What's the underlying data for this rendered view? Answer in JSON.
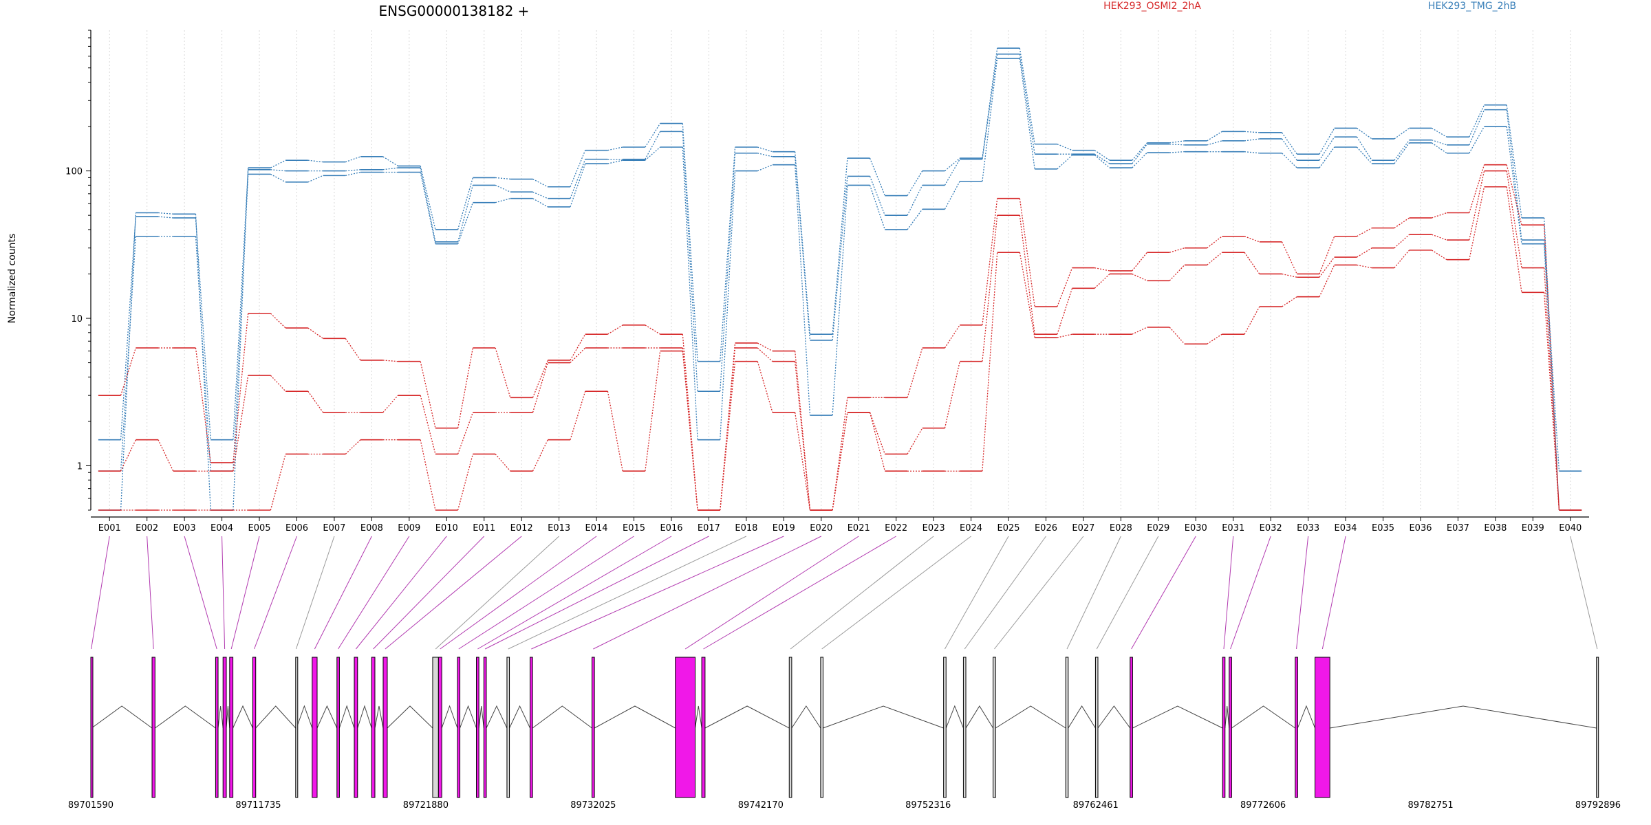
{
  "chart_data": {
    "type": "line",
    "title": "ENSG00000138182 +",
    "xlabel": "",
    "ylabel": "Normalized counts",
    "y_scale": "log",
    "ylim": [
      0.5,
      900
    ],
    "y_ticks": [
      1,
      10,
      100
    ],
    "y_tick_labels": [
      "1",
      "10",
      "100"
    ],
    "grid": "vertical dotted lines at each exon",
    "legend": "top, above plot",
    "legend_entries": [
      {
        "label": "HEK293_OSMI2_2hA",
        "color": "#d62728"
      },
      {
        "label": "HEK293_TMG_2hB",
        "color": "#377eb8"
      }
    ],
    "categories": [
      "E001",
      "E002",
      "E003",
      "E004",
      "E005",
      "E006",
      "E007",
      "E008",
      "E009",
      "E010",
      "E011",
      "E012",
      "E013",
      "E014",
      "E015",
      "E016",
      "E017",
      "E018",
      "E019",
      "E020",
      "E021",
      "E022",
      "E023",
      "E024",
      "E025",
      "E026",
      "E027",
      "E028",
      "E029",
      "E030",
      "E031",
      "E032",
      "E033",
      "E034",
      "E035",
      "E036",
      "E037",
      "E038",
      "E039",
      "E040"
    ],
    "series": [
      {
        "group": "HEK293_TMG_2hB",
        "color": "#377eb8",
        "values": [
          0.5,
          52,
          51,
          0.5,
          105,
          118,
          115,
          125,
          108,
          40,
          90,
          88,
          78,
          138,
          145,
          210,
          5.1,
          145,
          135,
          7.8,
          122,
          68,
          100,
          122,
          680,
          152,
          138,
          118,
          155,
          160,
          185,
          182,
          130,
          195,
          165,
          195,
          170,
          280,
          48,
          0.5
        ]
      },
      {
        "group": "HEK293_TMG_2hB",
        "color": "#377eb8",
        "values": [
          1.5,
          49,
          48,
          1.5,
          102,
          100,
          100,
          102,
          105,
          33,
          80,
          72,
          65,
          120,
          120,
          185,
          3.2,
          132,
          125,
          7.1,
          92,
          50,
          80,
          120,
          620,
          130,
          130,
          112,
          152,
          150,
          160,
          165,
          118,
          170,
          118,
          162,
          150,
          260,
          34,
          0.92
        ]
      },
      {
        "group": "HEK293_TMG_2hB",
        "color": "#377eb8",
        "values": [
          0.92,
          36,
          36,
          0.92,
          95,
          84,
          93,
          98,
          98,
          32,
          61,
          65,
          57,
          112,
          118,
          145,
          1.5,
          100,
          110,
          2.2,
          80,
          40,
          55,
          85,
          580,
          103,
          128,
          105,
          133,
          135,
          135,
          132,
          105,
          145,
          112,
          155,
          132,
          200,
          32,
          0.5
        ]
      },
      {
        "group": "HEK293_OSMI2_2hA",
        "color": "#d62728",
        "values": [
          3.0,
          6.3,
          6.3,
          1.05,
          10.8,
          8.6,
          7.3,
          5.2,
          5.1,
          1.8,
          6.3,
          2.9,
          5.2,
          7.8,
          9.0,
          7.8,
          0.5,
          6.8,
          6.0,
          0.5,
          2.9,
          2.9,
          6.3,
          9.0,
          65,
          12,
          22,
          21,
          28,
          30,
          36,
          33,
          20,
          36,
          41,
          48,
          52,
          110,
          43,
          0.5
        ]
      },
      {
        "group": "HEK293_OSMI2_2hA",
        "color": "#d62728",
        "values": [
          0.92,
          1.5,
          0.92,
          0.92,
          4.1,
          3.2,
          2.3,
          2.3,
          3.0,
          1.2,
          2.3,
          2.3,
          5.0,
          6.3,
          6.3,
          6.3,
          0.5,
          6.3,
          5.1,
          0.5,
          2.3,
          1.2,
          1.8,
          5.1,
          50,
          7.8,
          16,
          20,
          18,
          23,
          28,
          20,
          19,
          26,
          30,
          37,
          34,
          100,
          22,
          0.5
        ]
      },
      {
        "group": "HEK293_OSMI2_2hA",
        "color": "#d62728",
        "values": [
          0.5,
          0.5,
          0.5,
          0.5,
          0.5,
          1.2,
          1.2,
          1.5,
          1.5,
          0.5,
          1.2,
          0.92,
          1.5,
          3.2,
          0.92,
          6.0,
          0.5,
          5.1,
          2.3,
          0.5,
          2.3,
          0.92,
          0.92,
          0.92,
          28,
          7.4,
          7.8,
          7.8,
          8.7,
          6.7,
          7.8,
          12,
          14,
          23,
          22,
          29,
          25,
          78,
          15,
          0.5
        ]
      }
    ],
    "gene_model": {
      "coordinate_labels": [
        "89701590",
        "89711735",
        "89721880",
        "89732025",
        "89742170",
        "89752316",
        "89762461",
        "89772606",
        "89782751",
        "89792896"
      ],
      "coordinate_start": 89701590,
      "coordinate_end": 89792896,
      "legend_colors": {
        "significant": "#f018e8",
        "not_significant": "#d8d8d8"
      },
      "exons": [
        {
          "exon": "E001",
          "start": 89701590,
          "end": 89701640,
          "significant": true
        },
        {
          "exon": "E002",
          "start": 89705300,
          "end": 89705480,
          "significant": true
        },
        {
          "exon": "E003",
          "start": 89709150,
          "end": 89709300,
          "significant": true
        },
        {
          "exon": "E004",
          "start": 89709600,
          "end": 89709800,
          "significant": true
        },
        {
          "exon": "E005",
          "start": 89710000,
          "end": 89710200,
          "significant": true
        },
        {
          "exon": "E006",
          "start": 89711400,
          "end": 89711580,
          "significant": true
        },
        {
          "exon": "E007",
          "start": 89714000,
          "end": 89714050,
          "significant": false
        },
        {
          "exon": "E008",
          "start": 89715000,
          "end": 89715300,
          "significant": true
        },
        {
          "exon": "E009",
          "start": 89716500,
          "end": 89716650,
          "significant": true
        },
        {
          "exon": "E010",
          "start": 89717550,
          "end": 89717750,
          "significant": true
        },
        {
          "exon": "E011",
          "start": 89718600,
          "end": 89718800,
          "significant": true
        },
        {
          "exon": "E012",
          "start": 89719300,
          "end": 89719550,
          "significant": true
        },
        {
          "exon": "E013",
          "start": 89722300,
          "end": 89722650,
          "significant": false
        },
        {
          "exon": "E014",
          "start": 89722650,
          "end": 89722850,
          "significant": true
        },
        {
          "exon": "E015",
          "start": 89723800,
          "end": 89723950,
          "significant": true
        },
        {
          "exon": "E016",
          "start": 89724950,
          "end": 89725100,
          "significant": true
        },
        {
          "exon": "E017",
          "start": 89725400,
          "end": 89725550,
          "significant": true
        },
        {
          "exon": "E018",
          "start": 89726800,
          "end": 89726950,
          "significant": false
        },
        {
          "exon": "E019",
          "start": 89728200,
          "end": 89728350,
          "significant": true
        },
        {
          "exon": "E020",
          "start": 89731950,
          "end": 89732100,
          "significant": true
        },
        {
          "exon": "E021",
          "start": 89737000,
          "end": 89738200,
          "significant": true
        },
        {
          "exon": "E022",
          "start": 89738600,
          "end": 89738800,
          "significant": true
        },
        {
          "exon": "E023",
          "start": 89743900,
          "end": 89744050,
          "significant": false
        },
        {
          "exon": "E024",
          "start": 89745800,
          "end": 89745950,
          "significant": false
        },
        {
          "exon": "E025",
          "start": 89753250,
          "end": 89753400,
          "significant": false
        },
        {
          "exon": "E026",
          "start": 89754450,
          "end": 89754600,
          "significant": false
        },
        {
          "exon": "E027",
          "start": 89756250,
          "end": 89756400,
          "significant": false
        },
        {
          "exon": "E028",
          "start": 89760650,
          "end": 89760800,
          "significant": false
        },
        {
          "exon": "E029",
          "start": 89762450,
          "end": 89762600,
          "significant": false
        },
        {
          "exon": "E030",
          "start": 89764550,
          "end": 89764700,
          "significant": true
        },
        {
          "exon": "E031",
          "start": 89770150,
          "end": 89770300,
          "significant": true
        },
        {
          "exon": "E032",
          "start": 89770550,
          "end": 89770700,
          "significant": true
        },
        {
          "exon": "E033",
          "start": 89774550,
          "end": 89774700,
          "significant": true
        },
        {
          "exon": "E034",
          "start": 89775750,
          "end": 89776650,
          "significant": true
        },
        {
          "exon": "E040",
          "start": 89792800,
          "end": 89792896,
          "significant": false
        }
      ]
    }
  },
  "colors": {
    "treatment": "#d62728",
    "control": "#377eb8",
    "exon_significant": "#f018e8",
    "exon_plain": "#d8d8d8",
    "connector_significant": "#b23ab0",
    "connector_plain": "#9a9a9a"
  }
}
